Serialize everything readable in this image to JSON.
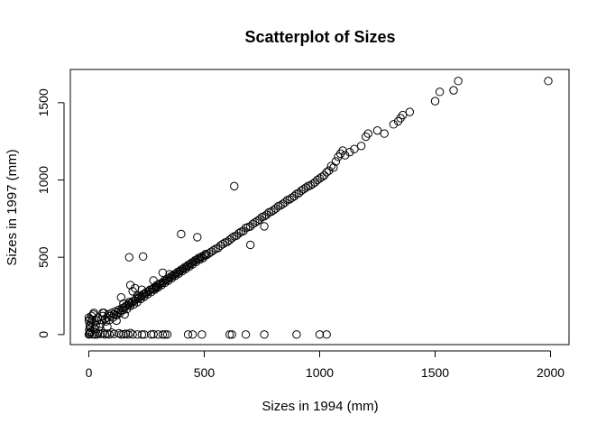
{
  "chart_data": {
    "type": "scatter",
    "title": "Scatterplot of Sizes",
    "xlabel": "Sizes in 1994 (mm)",
    "ylabel": "Sizes in 1997 (mm)",
    "xlim": [
      -80,
      2080
    ],
    "ylim": [
      -65,
      1715
    ],
    "xticks": [
      0,
      500,
      1000,
      1500,
      2000
    ],
    "yticks": [
      0,
      500,
      1000,
      1500
    ],
    "grid": false,
    "legend": "none",
    "series": [
      {
        "name": "sizes",
        "points": [
          [
            0,
            0
          ],
          [
            3,
            5
          ],
          [
            5,
            12
          ],
          [
            8,
            20
          ],
          [
            2,
            30
          ],
          [
            6,
            45
          ],
          [
            4,
            60
          ],
          [
            10,
            80
          ],
          [
            0,
            110
          ],
          [
            12,
            120
          ],
          [
            20,
            130
          ],
          [
            25,
            35
          ],
          [
            30,
            60
          ],
          [
            35,
            90
          ],
          [
            40,
            110
          ],
          [
            45,
            50
          ],
          [
            50,
            70
          ],
          [
            55,
            95
          ],
          [
            60,
            120
          ],
          [
            65,
            140
          ],
          [
            70,
            100
          ],
          [
            75,
            85
          ],
          [
            80,
            110
          ],
          [
            85,
            130
          ],
          [
            90,
            95
          ],
          [
            95,
            120
          ],
          [
            100,
            140
          ],
          [
            105,
            110
          ],
          [
            110,
            130
          ],
          [
            115,
            150
          ],
          [
            120,
            125
          ],
          [
            125,
            145
          ],
          [
            130,
            160
          ],
          [
            135,
            140
          ],
          [
            140,
            155
          ],
          [
            145,
            170
          ],
          [
            150,
            160
          ],
          [
            155,
            175
          ],
          [
            160,
            185
          ],
          [
            165,
            165
          ],
          [
            170,
            190
          ],
          [
            175,
            200
          ],
          [
            180,
            185
          ],
          [
            185,
            205
          ],
          [
            190,
            215
          ],
          [
            195,
            195
          ],
          [
            200,
            220
          ],
          [
            205,
            230
          ],
          [
            210,
            210
          ],
          [
            215,
            235
          ],
          [
            220,
            245
          ],
          [
            225,
            230
          ],
          [
            230,
            250
          ],
          [
            235,
            260
          ],
          [
            240,
            245
          ],
          [
            245,
            265
          ],
          [
            250,
            275
          ],
          [
            255,
            260
          ],
          [
            260,
            280
          ],
          [
            265,
            290
          ],
          [
            270,
            275
          ],
          [
            275,
            295
          ],
          [
            280,
            300
          ],
          [
            285,
            290
          ],
          [
            290,
            310
          ],
          [
            295,
            320
          ],
          [
            300,
            305
          ],
          [
            305,
            325
          ],
          [
            310,
            330
          ],
          [
            315,
            320
          ],
          [
            320,
            335
          ],
          [
            325,
            345
          ],
          [
            330,
            335
          ],
          [
            335,
            350
          ],
          [
            340,
            360
          ],
          [
            345,
            350
          ],
          [
            350,
            365
          ],
          [
            355,
            375
          ],
          [
            360,
            365
          ],
          [
            365,
            380
          ],
          [
            370,
            390
          ],
          [
            375,
            380
          ],
          [
            380,
            395
          ],
          [
            385,
            405
          ],
          [
            390,
            395
          ],
          [
            395,
            410
          ],
          [
            400,
            420
          ],
          [
            405,
            410
          ],
          [
            410,
            425
          ],
          [
            415,
            435
          ],
          [
            420,
            425
          ],
          [
            425,
            440
          ],
          [
            430,
            450
          ],
          [
            435,
            440
          ],
          [
            440,
            455
          ],
          [
            445,
            465
          ],
          [
            450,
            455
          ],
          [
            455,
            470
          ],
          [
            460,
            480
          ],
          [
            465,
            470
          ],
          [
            470,
            485
          ],
          [
            475,
            495
          ],
          [
            480,
            485
          ],
          [
            485,
            500
          ],
          [
            490,
            505
          ],
          [
            495,
            495
          ],
          [
            500,
            510
          ],
          [
            505,
            520
          ],
          [
            510,
            515
          ],
          [
            520,
            525
          ],
          [
            530,
            535
          ],
          [
            540,
            545
          ],
          [
            550,
            555
          ],
          [
            560,
            560
          ],
          [
            570,
            575
          ],
          [
            580,
            585
          ],
          [
            590,
            595
          ],
          [
            600,
            600
          ],
          [
            610,
            612
          ],
          [
            620,
            625
          ],
          [
            630,
            635
          ],
          [
            640,
            640
          ],
          [
            650,
            655
          ],
          [
            660,
            665
          ],
          [
            670,
            670
          ],
          [
            680,
            690
          ],
          [
            690,
            695
          ],
          [
            700,
            700
          ],
          [
            710,
            715
          ],
          [
            720,
            725
          ],
          [
            730,
            735
          ],
          [
            740,
            745
          ],
          [
            750,
            760
          ],
          [
            760,
            765
          ],
          [
            770,
            775
          ],
          [
            780,
            790
          ],
          [
            790,
            795
          ],
          [
            800,
            805
          ],
          [
            810,
            815
          ],
          [
            820,
            830
          ],
          [
            830,
            835
          ],
          [
            840,
            845
          ],
          [
            850,
            855
          ],
          [
            860,
            870
          ],
          [
            870,
            875
          ],
          [
            880,
            885
          ],
          [
            890,
            895
          ],
          [
            900,
            910
          ],
          [
            910,
            915
          ],
          [
            920,
            930
          ],
          [
            930,
            940
          ],
          [
            940,
            950
          ],
          [
            950,
            960
          ],
          [
            960,
            965
          ],
          [
            970,
            975
          ],
          [
            980,
            985
          ],
          [
            990,
            1000
          ],
          [
            1000,
            1010
          ],
          [
            1010,
            1020
          ],
          [
            1020,
            1030
          ],
          [
            1030,
            1050
          ],
          [
            1040,
            1060
          ],
          [
            1050,
            1090
          ],
          [
            1060,
            1080
          ],
          [
            1070,
            1120
          ],
          [
            1080,
            1150
          ],
          [
            1090,
            1170
          ],
          [
            1100,
            1190
          ],
          [
            1110,
            1160
          ],
          [
            1130,
            1180
          ],
          [
            1150,
            1200
          ],
          [
            1180,
            1220
          ],
          [
            1200,
            1280
          ],
          [
            1210,
            1300
          ],
          [
            1250,
            1320
          ],
          [
            1280,
            1300
          ],
          [
            1320,
            1360
          ],
          [
            1340,
            1380
          ],
          [
            1350,
            1400
          ],
          [
            1360,
            1420
          ],
          [
            1390,
            1440
          ],
          [
            1500,
            1510
          ],
          [
            1520,
            1570
          ],
          [
            1580,
            1580
          ],
          [
            1600,
            1640
          ],
          [
            1990,
            1640
          ],
          [
            0,
            90
          ],
          [
            5,
            100
          ],
          [
            15,
            95
          ],
          [
            22,
            140
          ],
          [
            60,
            140
          ],
          [
            80,
            50
          ],
          [
            120,
            90
          ],
          [
            140,
            240
          ],
          [
            150,
            200
          ],
          [
            155,
            130
          ],
          [
            175,
            210
          ],
          [
            180,
            320
          ],
          [
            190,
            280
          ],
          [
            200,
            300
          ],
          [
            210,
            250
          ],
          [
            230,
            290
          ],
          [
            280,
            350
          ],
          [
            290,
            300
          ],
          [
            320,
            400
          ],
          [
            350,
            390
          ],
          [
            400,
            650
          ],
          [
            470,
            630
          ],
          [
            630,
            960
          ],
          [
            700,
            580
          ],
          [
            760,
            700
          ],
          [
            175,
            500
          ],
          [
            235,
            505
          ],
          [
            40,
            10
          ],
          [
            60,
            8
          ],
          [
            80,
            5
          ],
          [
            100,
            12
          ],
          [
            130,
            8
          ],
          [
            160,
            5
          ],
          [
            180,
            10
          ],
          [
            190,
            0
          ],
          [
            210,
            0
          ],
          [
            230,
            0
          ],
          [
            240,
            0
          ],
          [
            270,
            0
          ],
          [
            280,
            2
          ],
          [
            300,
            0
          ],
          [
            320,
            0
          ],
          [
            330,
            0
          ],
          [
            340,
            0
          ],
          [
            430,
            0
          ],
          [
            450,
            0
          ],
          [
            490,
            0
          ],
          [
            610,
            0
          ],
          [
            620,
            0
          ],
          [
            680,
            0
          ],
          [
            760,
            0
          ],
          [
            900,
            0
          ],
          [
            1000,
            0
          ],
          [
            1030,
            0
          ],
          [
            15,
            2
          ],
          [
            25,
            0
          ],
          [
            35,
            0
          ],
          [
            50,
            4
          ],
          [
            70,
            0
          ],
          [
            90,
            0
          ],
          [
            110,
            3
          ],
          [
            140,
            0
          ],
          [
            150,
            2
          ],
          [
            170,
            0
          ]
        ]
      }
    ]
  }
}
